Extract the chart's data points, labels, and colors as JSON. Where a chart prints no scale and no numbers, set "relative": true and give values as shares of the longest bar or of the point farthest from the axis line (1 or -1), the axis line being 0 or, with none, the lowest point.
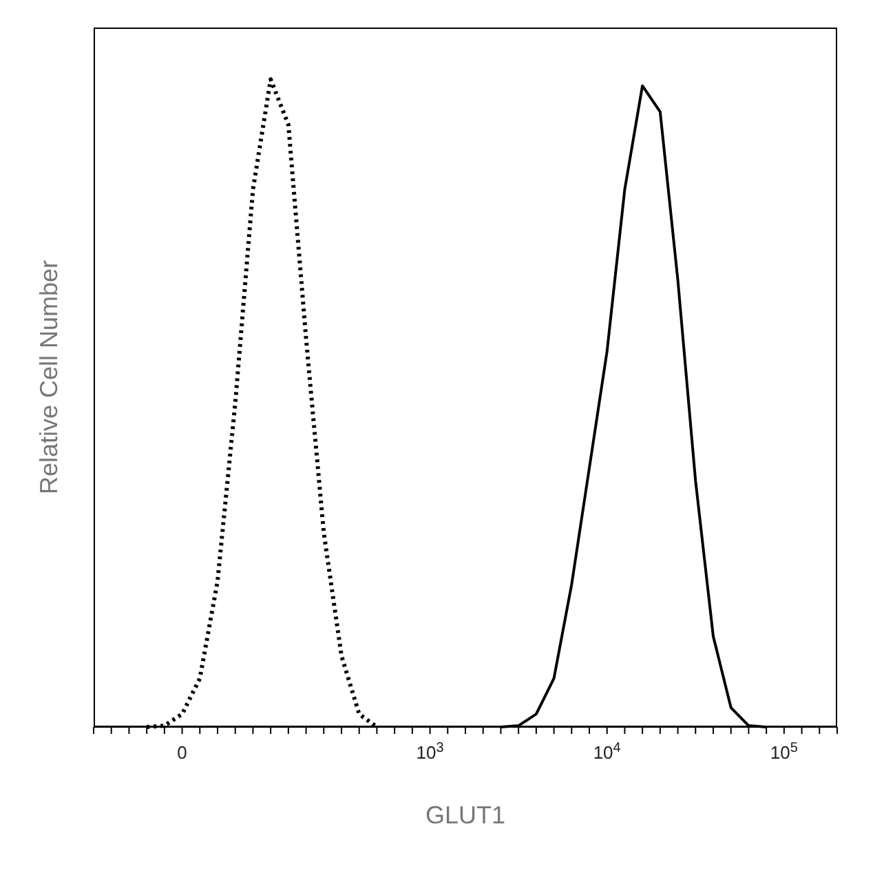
{
  "chart_data": {
    "type": "line",
    "relative": true,
    "xlabel": "GLUT1",
    "ylabel": "Relative Cell Number",
    "categories": [
      null,
      null,
      null,
      null,
      null,
      "0",
      null,
      null,
      null,
      null,
      null,
      null,
      null,
      null,
      null,
      null,
      null,
      null,
      null,
      "10$^{3}$",
      null,
      null,
      null,
      null,
      null,
      null,
      null,
      null,
      null,
      "10$^{4}$",
      null,
      null,
      null,
      null,
      null,
      null,
      null,
      null,
      null,
      "10$^{5}$",
      null,
      null,
      null
    ],
    "grid": false,
    "legend": false,
    "marker": "none",
    "series": [
      {
        "color": "#000000",
        "line_style": "dotted",
        "values": [
          null,
          null,
          null,
          0,
          0.002,
          0.02,
          0.075,
          0.225,
          0.5,
          0.83,
          1,
          0.93,
          0.6,
          0.3,
          0.11,
          0.02,
          0,
          null,
          null,
          null,
          null,
          null,
          null,
          null,
          null,
          null,
          null,
          null,
          null,
          null,
          null,
          null,
          null,
          null,
          null,
          null,
          null,
          null,
          null,
          null,
          null,
          null,
          null
        ]
      },
      {
        "color": "#000000",
        "line_style": "solid",
        "values": [
          null,
          null,
          null,
          null,
          null,
          null,
          null,
          null,
          null,
          null,
          null,
          null,
          null,
          null,
          null,
          null,
          null,
          null,
          null,
          null,
          null,
          null,
          null,
          0,
          0.002,
          0.02,
          0.075,
          0.22,
          0.4,
          0.58,
          0.83,
          0.99,
          0.95,
          0.69,
          0.38,
          0.14,
          0.03,
          0.002,
          0,
          null,
          null,
          null,
          null
        ]
      }
    ]
  }
}
